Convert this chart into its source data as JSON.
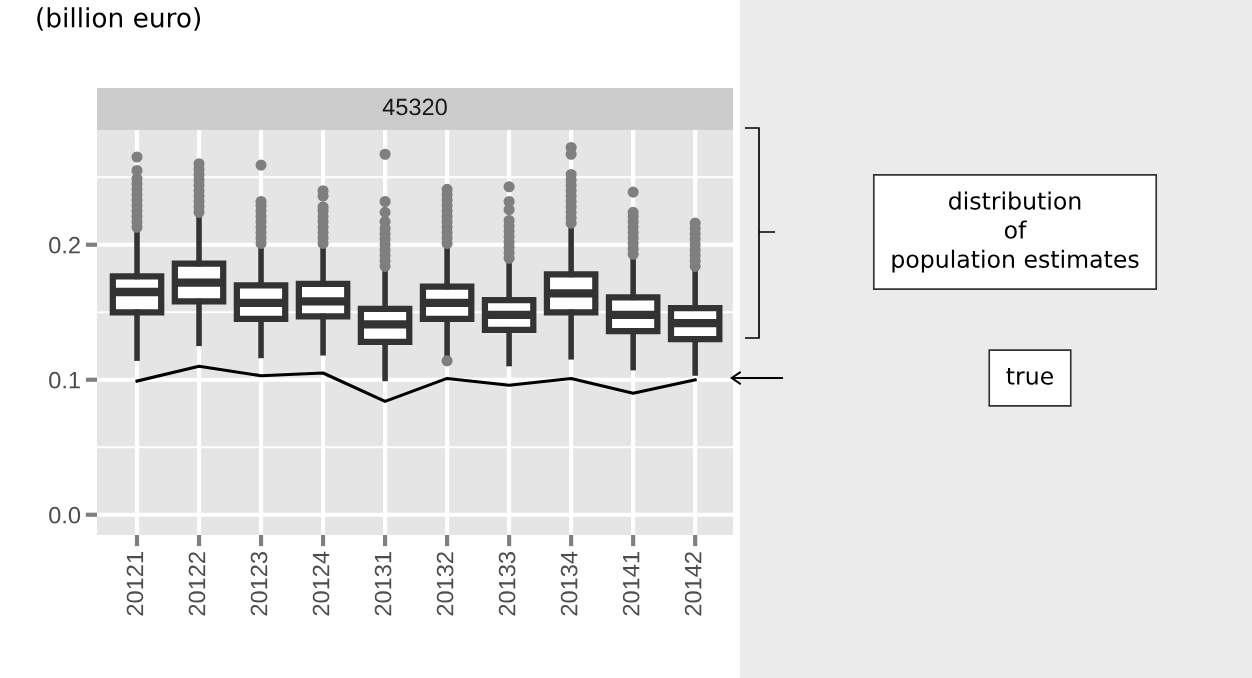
{
  "chart_data": {
    "type": "box",
    "title": "45320",
    "ylabel": "(billion euro)",
    "categories": [
      "20121",
      "20122",
      "20123",
      "20124",
      "20131",
      "20132",
      "20133",
      "20134",
      "20141",
      "20142"
    ],
    "series": [
      {
        "color": "#333333",
        "boxes": [
          {
            "low": 0.116,
            "q1": 0.15,
            "median": 0.165,
            "q3": 0.1765,
            "high": 0.21,
            "outliers": [
              0.213,
              0.217,
              0.221,
              0.225,
              0.229,
              0.233,
              0.237,
              0.241,
              0.245,
              0.249,
              0.255,
              0.265
            ]
          },
          {
            "low": 0.127,
            "q1": 0.158,
            "median": 0.172,
            "q3": 0.186,
            "high": 0.221,
            "outliers": [
              0.224,
              0.228,
              0.232,
              0.236,
              0.24,
              0.244,
              0.248,
              0.252,
              0.256,
              0.26
            ]
          },
          {
            "low": 0.118,
            "q1": 0.145,
            "median": 0.157,
            "q3": 0.17,
            "high": 0.198,
            "outliers": [
              0.201,
              0.205,
              0.209,
              0.213,
              0.217,
              0.221,
              0.225,
              0.229,
              0.232,
              0.259
            ]
          },
          {
            "low": 0.12,
            "q1": 0.147,
            "median": 0.158,
            "q3": 0.171,
            "high": 0.198,
            "outliers": [
              0.201,
              0.205,
              0.209,
              0.213,
              0.217,
              0.221,
              0.225,
              0.228,
              0.236,
              0.24
            ]
          },
          {
            "low": 0.101,
            "q1": 0.128,
            "median": 0.141,
            "q3": 0.1525,
            "high": 0.181,
            "outliers": [
              0.184,
              0.188,
              0.192,
              0.196,
              0.2,
              0.204,
              0.208,
              0.212,
              0.217,
              0.224,
              0.232,
              0.267
            ]
          },
          {
            "low": 0.116,
            "q1": 0.145,
            "median": 0.157,
            "q3": 0.169,
            "high": 0.198,
            "outliers": [
              0.114,
              0.201,
              0.205,
              0.209,
              0.213,
              0.217,
              0.221,
              0.225,
              0.229,
              0.233,
              0.237,
              0.241
            ]
          },
          {
            "low": 0.112,
            "q1": 0.137,
            "median": 0.148,
            "q3": 0.159,
            "high": 0.187,
            "outliers": [
              0.19,
              0.194,
              0.198,
              0.202,
              0.206,
              0.21,
              0.214,
              0.218,
              0.226,
              0.232,
              0.243
            ]
          },
          {
            "low": 0.117,
            "q1": 0.15,
            "median": 0.164,
            "q3": 0.178,
            "high": 0.2125,
            "outliers": [
              0.216,
              0.22,
              0.224,
              0.228,
              0.232,
              0.236,
              0.24,
              0.244,
              0.248,
              0.252,
              0.267,
              0.272
            ]
          },
          {
            "low": 0.109,
            "q1": 0.136,
            "median": 0.148,
            "q3": 0.161,
            "high": 0.19,
            "outliers": [
              0.193,
              0.197,
              0.201,
              0.205,
              0.209,
              0.213,
              0.217,
              0.221,
              0.224,
              0.239
            ]
          },
          {
            "low": 0.105,
            "q1": 0.13,
            "median": 0.142,
            "q3": 0.153,
            "high": 0.181,
            "outliers": [
              0.184,
              0.188,
              0.192,
              0.196,
              0.2,
              0.204,
              0.208,
              0.212,
              0.216
            ]
          }
        ]
      },
      {
        "type": "line",
        "name": "true",
        "color": "#000000",
        "values": [
          0.099,
          0.11,
          0.103,
          0.105,
          0.084,
          0.101,
          0.096,
          0.101,
          0.09,
          0.1
        ]
      }
    ],
    "ylim": [
      -0.015,
      0.285
    ],
    "yticks": [
      {
        "value": 0,
        "label": "0.0"
      },
      {
        "value": 0.1,
        "label": "0.1"
      },
      {
        "value": 0.2,
        "label": "0.2"
      }
    ],
    "grid": true,
    "annotations": [
      "distribution\nof\npopulation estimates"
    ]
  }
}
